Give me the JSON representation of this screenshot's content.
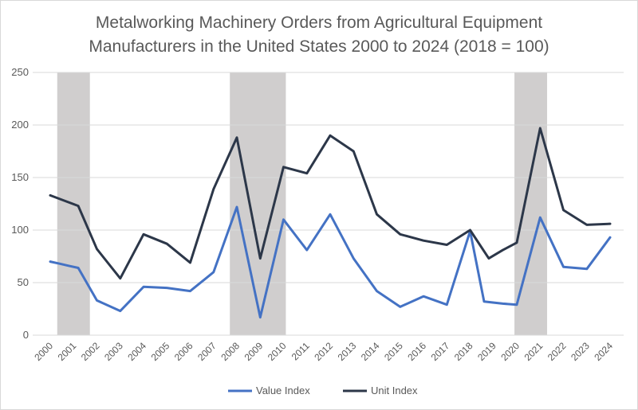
{
  "title_line1": "Metalworking Machinery Orders from Agricultural  Equipment",
  "title_line2": "Manufacturers in the United States 2000 to 2024 (2018 = 100)",
  "chart_data": {
    "type": "line",
    "title": "Metalworking Machinery Orders from Agricultural  Equipment Manufacturers in the United States 2000 to 2024 (2018 = 100)",
    "xlabel": "",
    "ylabel": "",
    "ylim": [
      0,
      250
    ],
    "y_ticks": [
      0,
      50,
      100,
      150,
      200,
      250
    ],
    "x_ticks": [
      "2000",
      "2001",
      "2002",
      "2003",
      "2004",
      "2005",
      "2006",
      "2007",
      "2008",
      "2009",
      "2010",
      "2011",
      "2012",
      "2013",
      "2014",
      "2015",
      "2016",
      "2017",
      "2018",
      "2019",
      "2020",
      "2021",
      "2022",
      "2023",
      "2024"
    ],
    "grid": "horizontal",
    "legend_position": "bottom",
    "shaded_periods": [
      {
        "start": 2000.3,
        "end": 2001.7
      },
      {
        "start": 2007.7,
        "end": 2010.1
      },
      {
        "start": 2019.9,
        "end": 2021.3
      }
    ],
    "shade_color": "#d0cece",
    "series": [
      {
        "name": "Value Index",
        "color": "#4472c4",
        "points": [
          [
            2000.0,
            70
          ],
          [
            2000.4,
            68
          ],
          [
            2000.8,
            66
          ],
          [
            2001.2,
            64
          ],
          [
            2002.0,
            33
          ],
          [
            2003.0,
            23
          ],
          [
            2004.0,
            46
          ],
          [
            2005.0,
            45
          ],
          [
            2006.0,
            42
          ],
          [
            2007.0,
            60
          ],
          [
            2008.0,
            122
          ],
          [
            2009.0,
            17
          ],
          [
            2010.0,
            110
          ],
          [
            2011.0,
            81
          ],
          [
            2012.0,
            115
          ],
          [
            2013.0,
            73
          ],
          [
            2014.0,
            42
          ],
          [
            2015.0,
            27
          ],
          [
            2016.0,
            37
          ],
          [
            2017.0,
            29
          ],
          [
            2018.0,
            99
          ],
          [
            2018.6,
            32
          ],
          [
            2019.4,
            30
          ],
          [
            2020.0,
            29
          ],
          [
            2021.0,
            112
          ],
          [
            2022.0,
            65
          ],
          [
            2023.0,
            63
          ],
          [
            2024.0,
            93
          ]
        ]
      },
      {
        "name": "Unit Index",
        "color": "#2c3749",
        "points": [
          [
            2000.0,
            133
          ],
          [
            2000.6,
            128
          ],
          [
            2001.2,
            123
          ],
          [
            2002.0,
            82
          ],
          [
            2003.0,
            54
          ],
          [
            2004.0,
            96
          ],
          [
            2005.0,
            87
          ],
          [
            2006.0,
            69
          ],
          [
            2007.0,
            139
          ],
          [
            2008.0,
            188
          ],
          [
            2009.0,
            73
          ],
          [
            2010.0,
            160
          ],
          [
            2011.0,
            154
          ],
          [
            2012.0,
            190
          ],
          [
            2013.0,
            175
          ],
          [
            2014.0,
            115
          ],
          [
            2015.0,
            96
          ],
          [
            2016.0,
            90
          ],
          [
            2017.0,
            86
          ],
          [
            2018.0,
            100
          ],
          [
            2018.8,
            73
          ],
          [
            2019.4,
            81
          ],
          [
            2020.0,
            88
          ],
          [
            2021.0,
            197
          ],
          [
            2022.0,
            119
          ],
          [
            2023.0,
            105
          ],
          [
            2024.0,
            106
          ]
        ]
      }
    ]
  }
}
